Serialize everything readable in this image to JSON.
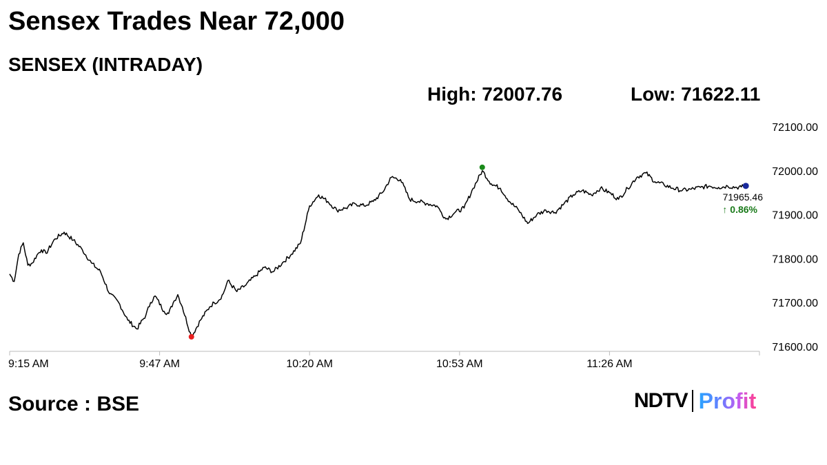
{
  "title": "Sensex Trades Near 72,000",
  "subtitle": "SENSEX (INTRADAY)",
  "stats": {
    "high": "High: 72007.76",
    "low": "Low: 71622.11"
  },
  "source": "Source : BSE",
  "logo": {
    "ndtv": "NDTV",
    "profit": "Profit"
  },
  "colors": {
    "line": "#000000",
    "high_marker": "#1a8a1a",
    "low_marker": "#e82020",
    "last_marker": "#1a2a9c",
    "change": "#1a7a1a",
    "axis": "#bbbbbb"
  },
  "chart_data": {
    "type": "line",
    "title": "SENSEX (INTRADAY)",
    "xlabel": "",
    "ylabel": "",
    "x_ticks": [
      "9:15 AM",
      "9:47 AM",
      "10:20 AM",
      "10:53 AM",
      "11:26 AM"
    ],
    "y_ticks": [
      "72100.00",
      "72000.00",
      "71900.00",
      "71800.00",
      "71700.00",
      "71600.00"
    ],
    "ylim": [
      71600,
      72100
    ],
    "x_unit": "minutes after 9:15 AM",
    "xlim": [
      0,
      165
    ],
    "series": [
      {
        "x": [
          0,
          1,
          2,
          3,
          4,
          5,
          6,
          7,
          8,
          10,
          12,
          14,
          16,
          18,
          20,
          22,
          24,
          26,
          28,
          30,
          31,
          32,
          34,
          35,
          36,
          37,
          38,
          40,
          42,
          44,
          45,
          46,
          47,
          48,
          50,
          52,
          54,
          56,
          58,
          60,
          62,
          64,
          66,
          68,
          70,
          72,
          74,
          76,
          78,
          80,
          82,
          84,
          86,
          88,
          90,
          92,
          94,
          95,
          96,
          98,
          100,
          102,
          104,
          106,
          108,
          110,
          112,
          114,
          116,
          118,
          120,
          122,
          124,
          126,
          128,
          130,
          132,
          134,
          136,
          138,
          140,
          142,
          144,
          146,
          148,
          150,
          152,
          154,
          156,
          158,
          160,
          161,
          162
        ],
        "values": [
          71765,
          71748,
          71810,
          71836,
          71785,
          71790,
          71808,
          71820,
          71812,
          71845,
          71860,
          71842,
          71820,
          71790,
          71770,
          71720,
          71700,
          71660,
          71640,
          71672,
          71700,
          71715,
          71680,
          71675,
          71700,
          71718,
          71690,
          71622,
          71660,
          71690,
          71700,
          71705,
          71720,
          71750,
          71725,
          71740,
          71760,
          71780,
          71770,
          71790,
          71810,
          71835,
          71920,
          71945,
          71930,
          71910,
          71915,
          71925,
          71920,
          71930,
          71950,
          71985,
          71980,
          71935,
          71930,
          71925,
          71920,
          71905,
          71890,
          71905,
          71915,
          71960,
          72000,
          71970,
          71960,
          71930,
          71910,
          71880,
          71900,
          71910,
          71905,
          71925,
          71945,
          71955,
          71945,
          71960,
          71950,
          71935,
          71960,
          71985,
          71995,
          71975,
          71968,
          71960,
          71955,
          71958,
          71962,
          71965,
          71962,
          71965,
          71962,
          71963,
          71965.46
        ]
      }
    ],
    "markers": {
      "high": [
        104,
        72007.76
      ],
      "low": [
        40,
        71622.11
      ],
      "last": [
        162,
        71965.46
      ]
    },
    "annotations": {
      "last_value": "71965.46",
      "change": "↑ 0.86%"
    },
    "grid": false
  }
}
